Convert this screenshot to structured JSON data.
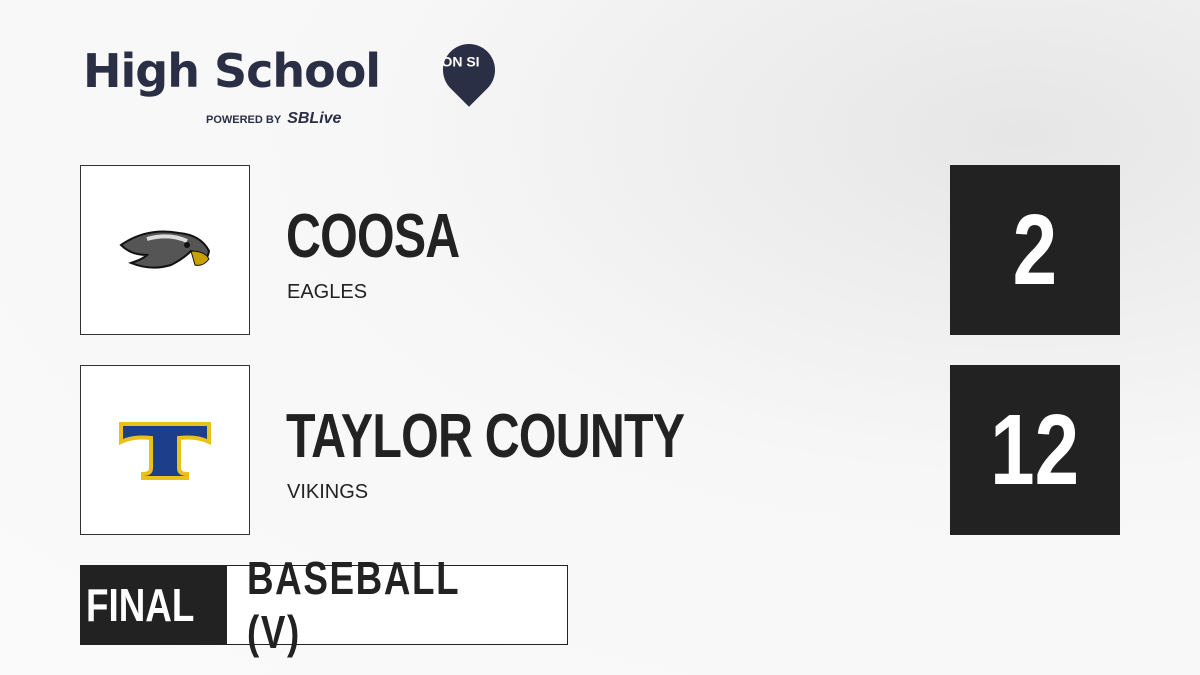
{
  "brand": {
    "title": "High School",
    "pin_text": "ON SI",
    "powered_by": "POWERED BY",
    "partner": "SBLive"
  },
  "teams": [
    {
      "name": "COOSA",
      "mascot": "EAGLES",
      "score": "2",
      "logo_icon": "eagle-head-icon"
    },
    {
      "name": "TAYLOR COUNTY",
      "mascot": "VIKINGS",
      "score": "12",
      "logo_icon": "letter-t-icon"
    }
  ],
  "status": {
    "state": "FINAL",
    "sport": "BASEBALL (V)"
  },
  "colors": {
    "brand_navy": "#2b2f45",
    "sblive_blue": "#2bb4e6",
    "score_bg": "#222222",
    "taylor_blue": "#1d3f8a",
    "taylor_gold": "#e8c21a"
  }
}
